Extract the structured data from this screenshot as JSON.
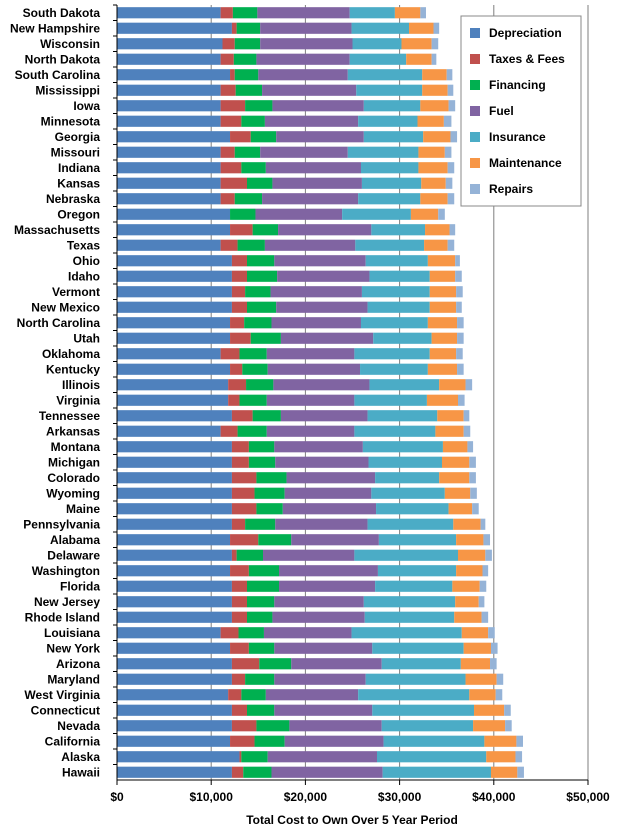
{
  "chart_data": {
    "type": "bar",
    "orientation": "horizontal",
    "stacked": true,
    "title": "",
    "xlabel": "Total Cost to Own Over 5 Year Period",
    "ylabel": "",
    "xlim": [
      0,
      50000
    ],
    "x_ticks": [
      0,
      10000,
      20000,
      30000,
      40000,
      50000
    ],
    "x_tick_labels": [
      "$0",
      "$10,000",
      "$20,000",
      "$30,000",
      "$40,000",
      "$50,000"
    ],
    "grid": "vertical",
    "legend_position": "top-right",
    "colors": [
      "#4f81bd",
      "#c0504d",
      "#00b050",
      "#8064a2",
      "#4bacc6",
      "#f79646",
      "#95b3d7"
    ],
    "categories": [
      "South Dakota",
      "New Hampshire",
      "Wisconsin",
      "North Dakota",
      "South Carolina",
      "Mississippi",
      "Iowa",
      "Minnesota",
      "Georgia",
      "Missouri",
      "Indiana",
      "Kansas",
      "Nebraska",
      "Oregon",
      "Massachusetts",
      "Texas",
      "Ohio",
      "Idaho",
      "Vermont",
      "New Mexico",
      "North Carolina",
      "Utah",
      "Oklahoma",
      "Kentucky",
      "Illinois",
      "Virginia",
      "Tennessee",
      "Arkansas",
      "Montana",
      "Michigan",
      "Colorado",
      "Wyoming",
      "Maine",
      "Pennsylvania",
      "Alabama",
      "Delaware",
      "Washington",
      "Florida",
      "New Jersey",
      "Rhode Island",
      "Louisiana",
      "New York",
      "Arizona",
      "Maryland",
      "West Virginia",
      "Connecticut",
      "Nevada",
      "California",
      "Alaska",
      "Hawaii"
    ],
    "series": [
      {
        "name": "Depreciation",
        "values": [
          11000,
          12200,
          11200,
          11000,
          12000,
          11000,
          11000,
          11000,
          12000,
          11000,
          11000,
          11000,
          11000,
          12000,
          12000,
          11000,
          12200,
          12200,
          12200,
          12200,
          12000,
          12000,
          11000,
          12000,
          11800,
          11800,
          12200,
          11000,
          12200,
          12200,
          12200,
          12200,
          12200,
          12200,
          12000,
          12200,
          12000,
          12200,
          12200,
          12200,
          11000,
          12000,
          12200,
          12200,
          11800,
          12200,
          12200,
          12000,
          13000,
          12200
        ]
      },
      {
        "name": "Taxes & Fees",
        "values": [
          1300,
          500,
          1300,
          1400,
          500,
          1600,
          2600,
          2200,
          2200,
          1500,
          2200,
          2800,
          1500,
          0,
          2400,
          1800,
          1600,
          1600,
          1400,
          1600,
          1500,
          2200,
          2000,
          1300,
          1900,
          1200,
          2200,
          1800,
          1800,
          1800,
          2600,
          2400,
          2600,
          1400,
          3000,
          500,
          2000,
          1600,
          1600,
          1600,
          1900,
          2000,
          2900,
          1400,
          1400,
          1600,
          2600,
          2600,
          200,
          1200
        ]
      },
      {
        "name": "Financing",
        "values": [
          2600,
          2500,
          2700,
          2400,
          2500,
          2800,
          2900,
          2500,
          2700,
          2700,
          2600,
          2700,
          2900,
          2700,
          2700,
          2900,
          2900,
          3200,
          2700,
          3100,
          2900,
          3200,
          2900,
          2700,
          2900,
          2900,
          3000,
          3100,
          2700,
          2800,
          3200,
          3200,
          2800,
          3200,
          3500,
          2800,
          3200,
          3400,
          2900,
          2700,
          2700,
          2700,
          3400,
          3100,
          2600,
          2900,
          3500,
          3200,
          2800,
          3000
        ]
      },
      {
        "name": "Fuel",
        "values": [
          9800,
          9700,
          9800,
          9900,
          9500,
          10000,
          9700,
          9900,
          9300,
          9300,
          10100,
          9500,
          10200,
          9200,
          9900,
          9600,
          9700,
          9800,
          9700,
          9700,
          9500,
          9800,
          9300,
          9800,
          10200,
          9300,
          9200,
          9300,
          9400,
          9900,
          9400,
          9200,
          9900,
          9800,
          9300,
          9700,
          10500,
          10200,
          9500,
          9800,
          9300,
          10400,
          9600,
          9700,
          9800,
          10400,
          9800,
          10500,
          11600,
          11800
        ]
      },
      {
        "name": "Insurance",
        "values": [
          4800,
          6100,
          5200,
          6000,
          7900,
          7000,
          6000,
          6300,
          6300,
          7500,
          6100,
          6300,
          6600,
          7300,
          5700,
          7300,
          6600,
          6400,
          7200,
          6600,
          7100,
          6200,
          8000,
          7200,
          7400,
          7700,
          7400,
          8600,
          8500,
          7800,
          6800,
          7800,
          7700,
          9100,
          8200,
          11000,
          8300,
          8200,
          9700,
          9500,
          11700,
          9700,
          8400,
          10600,
          11800,
          10800,
          9700,
          10700,
          11600,
          11500
        ]
      },
      {
        "name": "Maintenance",
        "values": [
          2700,
          2600,
          3200,
          2700,
          2600,
          2700,
          3000,
          2800,
          2900,
          2800,
          3100,
          2600,
          2900,
          2900,
          2600,
          2500,
          2900,
          2700,
          2800,
          2800,
          3100,
          2700,
          2800,
          3100,
          2800,
          3300,
          2800,
          3000,
          2600,
          2900,
          3200,
          2700,
          2500,
          2900,
          2900,
          2900,
          2800,
          2900,
          2500,
          2900,
          2800,
          2900,
          3100,
          3300,
          2800,
          3200,
          3400,
          3400,
          3100,
          2800
        ]
      },
      {
        "name": "Repairs",
        "values": [
          600,
          600,
          700,
          500,
          600,
          600,
          700,
          800,
          700,
          700,
          700,
          700,
          700,
          700,
          600,
          700,
          500,
          700,
          700,
          600,
          700,
          700,
          700,
          700,
          700,
          700,
          600,
          700,
          600,
          700,
          700,
          700,
          700,
          500,
          700,
          700,
          600,
          700,
          600,
          700,
          700,
          700,
          700,
          700,
          700,
          700,
          700,
          700,
          700,
          700
        ]
      }
    ]
  }
}
